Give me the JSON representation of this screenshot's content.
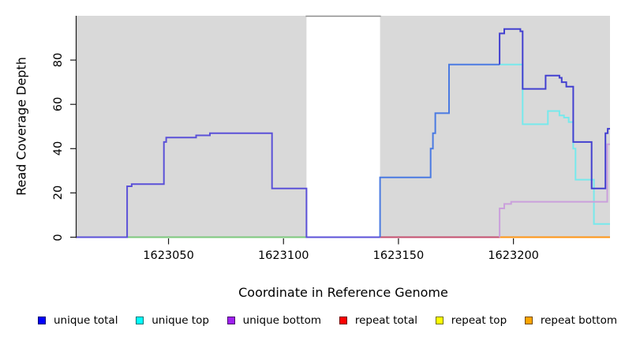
{
  "figure": {
    "xlabel": "Coordinate in Reference Genome",
    "ylabel": "Read Coverage Depth"
  },
  "legend": {
    "items": [
      {
        "label": "unique total",
        "color": "#0000ff"
      },
      {
        "label": "unique top",
        "color": "#00ffff"
      },
      {
        "label": "unique bottom",
        "color": "#a020f0"
      },
      {
        "label": "repeat total",
        "color": "#ff0000"
      },
      {
        "label": "repeat top",
        "color": "#ffff00"
      },
      {
        "label": "repeat bottom",
        "color": "#ffa500"
      }
    ]
  },
  "chart_data": {
    "type": "line",
    "subtype": "step-coverage",
    "title": "",
    "xlabel": "Coordinate in Reference Genome",
    "ylabel": "Read Coverage Depth",
    "xlim": [
      1623010,
      1623242
    ],
    "ylim": [
      0,
      100
    ],
    "grid": false,
    "legend_position": "bottom",
    "panel_color": "#d9d9d9",
    "box_color": "#8c8c8c",
    "axis_color": "#1a1a1a",
    "x_ticks": [
      {
        "value": 1623050,
        "label": "1623050"
      },
      {
        "value": 1623100,
        "label": "1623100"
      },
      {
        "value": 1623150,
        "label": "1623150"
      },
      {
        "value": 1623200,
        "label": "1623200"
      }
    ],
    "y_ticks": [
      {
        "value": 0,
        "label": "0"
      },
      {
        "value": 20,
        "label": "20"
      },
      {
        "value": 40,
        "label": "40"
      },
      {
        "value": 60,
        "label": "60"
      },
      {
        "value": 80,
        "label": "80"
      }
    ],
    "covered_regions": [
      [
        1623010,
        1623110
      ],
      [
        1623142,
        1623242
      ]
    ],
    "gap_region": [
      1623110,
      1623142
    ],
    "series": [
      {
        "name": "baseline-green-left",
        "color": "#7cc87c",
        "points": [
          [
            1623032,
            0
          ],
          [
            1623110,
            0
          ]
        ]
      },
      {
        "name": "repeat-total-baseline",
        "color": "#c44e6e",
        "points": [
          [
            1623142,
            0
          ],
          [
            1623194,
            0
          ]
        ]
      },
      {
        "name": "repeat-bottom-baseline",
        "color": "#ff9414",
        "points": [
          [
            1623194,
            0
          ],
          [
            1623242,
            0
          ]
        ]
      },
      {
        "name": "unique-top",
        "color": "#77e9ec",
        "points": [
          [
            1623194,
            78
          ],
          [
            1623204,
            51
          ],
          [
            1623215,
            57
          ],
          [
            1623220,
            55
          ],
          [
            1623222,
            54
          ],
          [
            1623224,
            52
          ],
          [
            1623226,
            40
          ],
          [
            1623227,
            26
          ],
          [
            1623235,
            6
          ],
          [
            1623242,
            6
          ]
        ]
      },
      {
        "name": "unique-total-right",
        "color": "#4a7ae2",
        "points": [
          [
            1623142,
            0
          ],
          [
            1623142,
            27
          ],
          [
            1623164,
            40
          ],
          [
            1623165,
            47
          ],
          [
            1623166,
            56
          ],
          [
            1623172,
            78
          ],
          [
            1623194,
            78
          ]
        ]
      },
      {
        "name": "unique-total-right-upper",
        "color": "#4340d0",
        "points": [
          [
            1623194,
            78
          ],
          [
            1623194,
            92
          ],
          [
            1623196,
            94
          ],
          [
            1623203,
            93
          ],
          [
            1623204,
            67
          ],
          [
            1623214,
            73
          ],
          [
            1623220,
            72
          ],
          [
            1623221,
            70
          ],
          [
            1623223,
            68
          ],
          [
            1623226,
            43
          ],
          [
            1623234,
            22
          ],
          [
            1623240,
            47
          ],
          [
            1623241,
            49
          ],
          [
            1623242,
            49
          ]
        ]
      },
      {
        "name": "unique-bottom-right",
        "color": "#caa0dc",
        "points": [
          [
            1623194,
            0
          ],
          [
            1623194,
            13
          ],
          [
            1623196,
            15
          ],
          [
            1623199,
            16
          ],
          [
            1623240,
            16
          ],
          [
            1623240.8,
            42
          ],
          [
            1623242,
            42
          ]
        ]
      },
      {
        "name": "unique-total-and-bottom-left",
        "color": "#5b51d8",
        "points": [
          [
            1623010,
            0
          ],
          [
            1623032,
            23
          ],
          [
            1623034,
            24
          ],
          [
            1623048,
            43
          ],
          [
            1623049,
            45
          ],
          [
            1623062,
            46
          ],
          [
            1623068,
            47
          ],
          [
            1623095,
            22
          ],
          [
            1623110,
            0
          ],
          [
            1623142,
            0
          ]
        ]
      }
    ]
  }
}
